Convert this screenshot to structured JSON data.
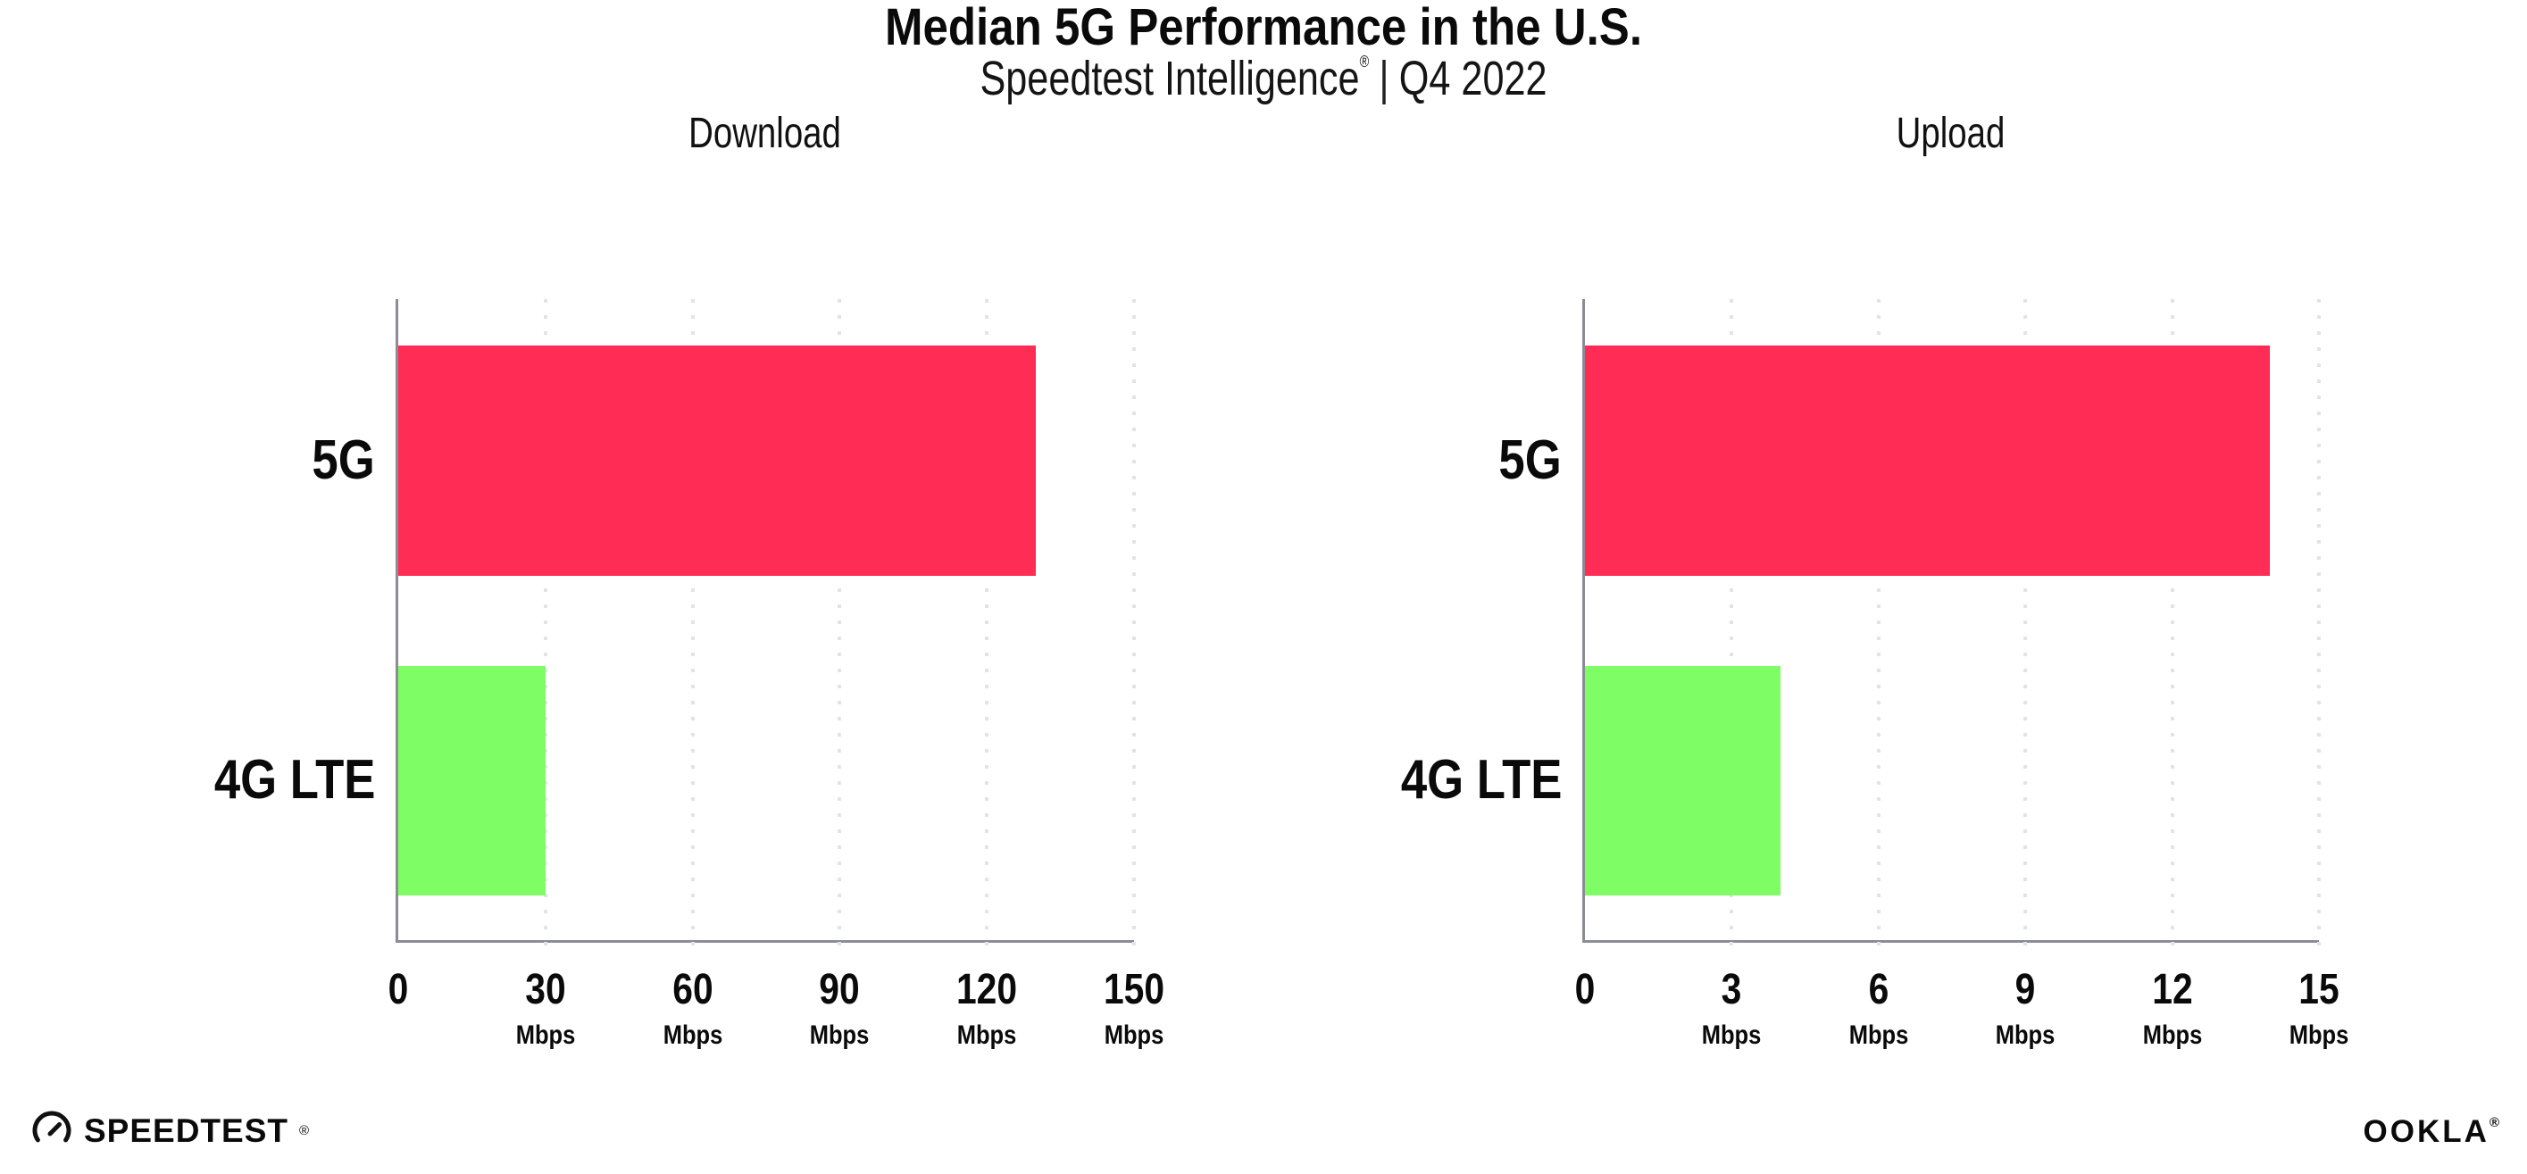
{
  "header": {
    "title": "Median 5G Performance in the U.S.",
    "subtitle": {
      "brand": "Speedtest Intelligence",
      "registered_mark": "®",
      "separator": "|",
      "period": "Q4 2022"
    }
  },
  "colors": {
    "bar_5g": "#FF2D55",
    "bar_4g_lte": "#7EFD64",
    "axis": "#8C8C94",
    "gridline": "#E2E2EC",
    "text": "#0A0A0A",
    "background": "#FFFFFF"
  },
  "chart_data": [
    {
      "type": "bar",
      "orientation": "horizontal",
      "title": "Download",
      "categories": [
        "5G",
        "4G LTE"
      ],
      "values": [
        130,
        30
      ],
      "unit": "Mbps",
      "xlim": [
        0,
        150
      ],
      "xticks": [
        0,
        30,
        60,
        90,
        120,
        150
      ],
      "grid": "vertical-dotted",
      "legend": "none",
      "bar_colors": [
        "#FF2D55",
        "#7EFD64"
      ]
    },
    {
      "type": "bar",
      "orientation": "horizontal",
      "title": "Upload",
      "categories": [
        "5G",
        "4G LTE"
      ],
      "values": [
        14,
        4
      ],
      "unit": "Mbps",
      "xlim": [
        0,
        15
      ],
      "xticks": [
        0,
        3,
        6,
        9,
        12,
        15
      ],
      "grid": "vertical-dotted",
      "legend": "none",
      "bar_colors": [
        "#FF2D55",
        "#7EFD64"
      ]
    }
  ],
  "footer": {
    "speedtest_logo_text": "SPEEDTEST",
    "speedtest_logo_mark": "®",
    "ookla_logo_text": "OOKLA",
    "ookla_logo_mark": "®"
  }
}
